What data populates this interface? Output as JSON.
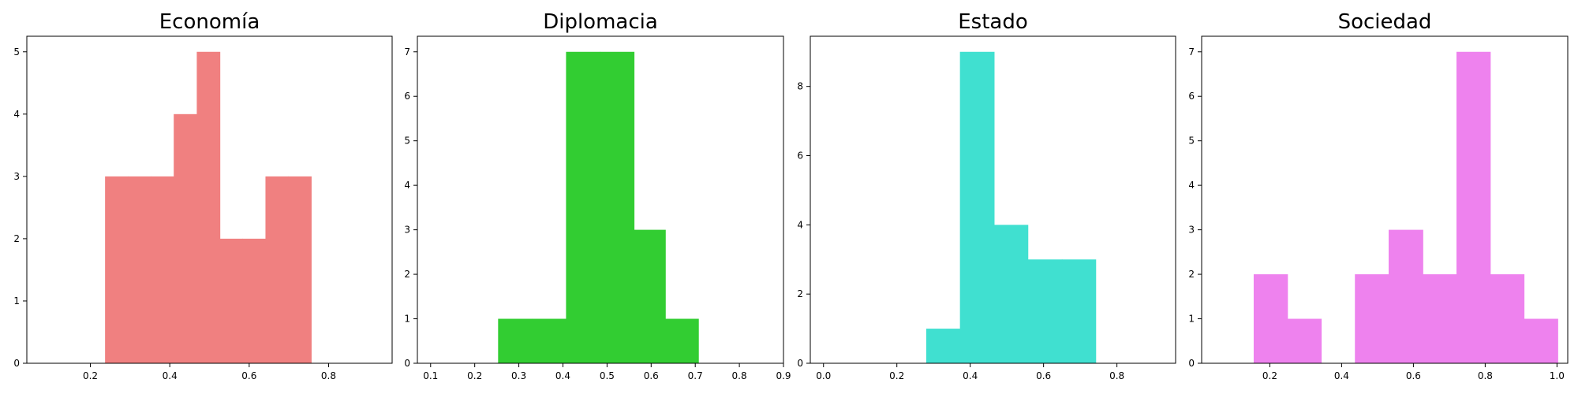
{
  "chart_data": [
    {
      "type": "bar",
      "title": "Economía",
      "color": "#f08080",
      "xlim": [
        0.04,
        0.96
      ],
      "ylim": [
        0,
        5.25
      ],
      "xticks": [
        0.2,
        0.4,
        0.6,
        0.8
      ],
      "yticks": [
        0,
        1,
        2,
        3,
        4,
        5
      ],
      "bins": [
        {
          "x0": 0.237,
          "x1": 0.295,
          "value": 3
        },
        {
          "x0": 0.295,
          "x1": 0.352,
          "value": 3
        },
        {
          "x0": 0.352,
          "x1": 0.41,
          "value": 3
        },
        {
          "x0": 0.41,
          "x1": 0.468,
          "value": 4
        },
        {
          "x0": 0.468,
          "x1": 0.526,
          "value": 5
        },
        {
          "x0": 0.526,
          "x1": 0.583,
          "value": 2
        },
        {
          "x0": 0.583,
          "x1": 0.641,
          "value": 2
        },
        {
          "x0": 0.641,
          "x1": 0.698,
          "value": 3
        },
        {
          "x0": 0.698,
          "x1": 0.756,
          "value": 3
        }
      ]
    },
    {
      "type": "bar",
      "title": "Diplomacia",
      "color": "#32cd32",
      "xlim": [
        0.07,
        0.9
      ],
      "ylim": [
        0,
        7.35
      ],
      "xticks": [
        0.1,
        0.2,
        0.3,
        0.4,
        0.5,
        0.6,
        0.7,
        0.8,
        0.9
      ],
      "yticks": [
        0,
        1,
        2,
        3,
        4,
        5,
        6,
        7
      ],
      "bins": [
        {
          "x0": 0.253,
          "x1": 0.33,
          "value": 1
        },
        {
          "x0": 0.33,
          "x1": 0.407,
          "value": 1
        },
        {
          "x0": 0.407,
          "x1": 0.484,
          "value": 7
        },
        {
          "x0": 0.484,
          "x1": 0.561,
          "value": 7
        },
        {
          "x0": 0.561,
          "x1": 0.632,
          "value": 3
        },
        {
          "x0": 0.632,
          "x1": 0.707,
          "value": 1
        }
      ]
    },
    {
      "type": "bar",
      "title": "Estado",
      "color": "#40e0d0",
      "xlim": [
        -0.036,
        0.96
      ],
      "ylim": [
        0,
        9.45
      ],
      "xticks": [
        0.0,
        0.2,
        0.4,
        0.6,
        0.8
      ],
      "yticks": [
        0,
        2,
        4,
        6,
        8
      ],
      "bins": [
        {
          "x0": 0.28,
          "x1": 0.372,
          "value": 1
        },
        {
          "x0": 0.372,
          "x1": 0.465,
          "value": 9
        },
        {
          "x0": 0.465,
          "x1": 0.557,
          "value": 4
        },
        {
          "x0": 0.557,
          "x1": 0.65,
          "value": 3
        },
        {
          "x0": 0.65,
          "x1": 0.742,
          "value": 3
        }
      ]
    },
    {
      "type": "bar",
      "title": "Sociedad",
      "color": "#ee82ee",
      "xlim": [
        0.01,
        1.03
      ],
      "ylim": [
        0,
        7.35
      ],
      "xticks": [
        0.2,
        0.4,
        0.6,
        0.8,
        1.0
      ],
      "yticks": [
        0,
        1,
        2,
        3,
        4,
        5,
        6,
        7
      ],
      "bins": [
        {
          "x0": 0.155,
          "x1": 0.249,
          "value": 2
        },
        {
          "x0": 0.249,
          "x1": 0.343,
          "value": 1
        },
        {
          "x0": 0.343,
          "x1": 0.437,
          "value": 0
        },
        {
          "x0": 0.437,
          "x1": 0.531,
          "value": 2
        },
        {
          "x0": 0.531,
          "x1": 0.626,
          "value": 3
        },
        {
          "x0": 0.626,
          "x1": 0.72,
          "value": 2
        },
        {
          "x0": 0.72,
          "x1": 0.814,
          "value": 7
        },
        {
          "x0": 0.814,
          "x1": 0.908,
          "value": 2
        },
        {
          "x0": 0.908,
          "x1": 1.002,
          "value": 1
        }
      ]
    }
  ]
}
